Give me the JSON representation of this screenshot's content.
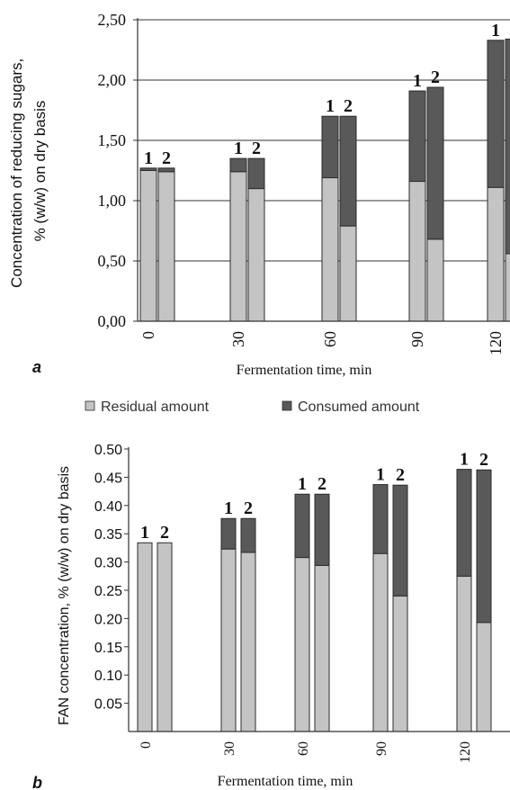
{
  "colors": {
    "residual": "#c4c4c4",
    "consumed": "#595959",
    "bar_stroke": "#2b2b2b",
    "axis": "#333333",
    "gridline": "#333333"
  },
  "legend": {
    "residual_label": "Residual amount",
    "consumed_label": "Consumed amount"
  },
  "chart_data": [
    {
      "panel": "a",
      "type": "bar",
      "stacked": true,
      "ylabel_line1": "Concentration of reducing sugars,",
      "ylabel_line2": "% (w/w) on dry basis",
      "xlabel": "Fermentation time, min",
      "ylim": [
        0,
        2.5
      ],
      "yticks": [
        "0,00",
        "0,50",
        "1,00",
        "1,50",
        "2,00",
        "2,50"
      ],
      "ytick_values": [
        0,
        0.5,
        1.0,
        1.5,
        2.0,
        2.5
      ],
      "grid": "horizontal",
      "categories": [
        "0",
        "30",
        "60",
        "90",
        "120"
      ],
      "bar_labels": [
        "1",
        "2"
      ],
      "series": [
        {
          "name": "Residual amount",
          "values": [
            [
              1.25,
              1.24
            ],
            [
              1.24,
              1.1
            ],
            [
              1.19,
              0.79
            ],
            [
              1.16,
              0.68
            ],
            [
              1.11,
              0.56
            ]
          ]
        },
        {
          "name": "Consumed amount",
          "values": [
            [
              0.02,
              0.03
            ],
            [
              0.11,
              0.25
            ],
            [
              0.51,
              0.91
            ],
            [
              0.75,
              1.26
            ],
            [
              1.22,
              1.78
            ]
          ]
        }
      ]
    },
    {
      "panel": "b",
      "type": "bar",
      "stacked": true,
      "ylabel": "FAN concentration, % (w/w) on dry basis",
      "xlabel": "Fermentation time, min",
      "ylim": [
        0,
        0.5
      ],
      "yticks": [
        "0.05",
        "0.10",
        "0.15",
        "0.20",
        "0.25",
        "0.30",
        "0.35",
        "0.40",
        "0.45",
        "0.50"
      ],
      "ytick_values": [
        0.05,
        0.1,
        0.15,
        0.2,
        0.25,
        0.3,
        0.35,
        0.4,
        0.45,
        0.5
      ],
      "grid": "none",
      "categories": [
        "0",
        "30",
        "60",
        "90",
        "120"
      ],
      "bar_labels": [
        "1",
        "2"
      ],
      "series": [
        {
          "name": "Residual amount",
          "values": [
            [
              0.334,
              0.334
            ],
            [
              0.323,
              0.317
            ],
            [
              0.308,
              0.294
            ],
            [
              0.315,
              0.24
            ],
            [
              0.275,
              0.193
            ]
          ]
        },
        {
          "name": "Consumed amount",
          "values": [
            [
              0.0,
              0.0
            ],
            [
              0.054,
              0.06
            ],
            [
              0.112,
              0.126
            ],
            [
              0.122,
              0.196
            ],
            [
              0.189,
              0.27
            ]
          ]
        }
      ]
    }
  ]
}
